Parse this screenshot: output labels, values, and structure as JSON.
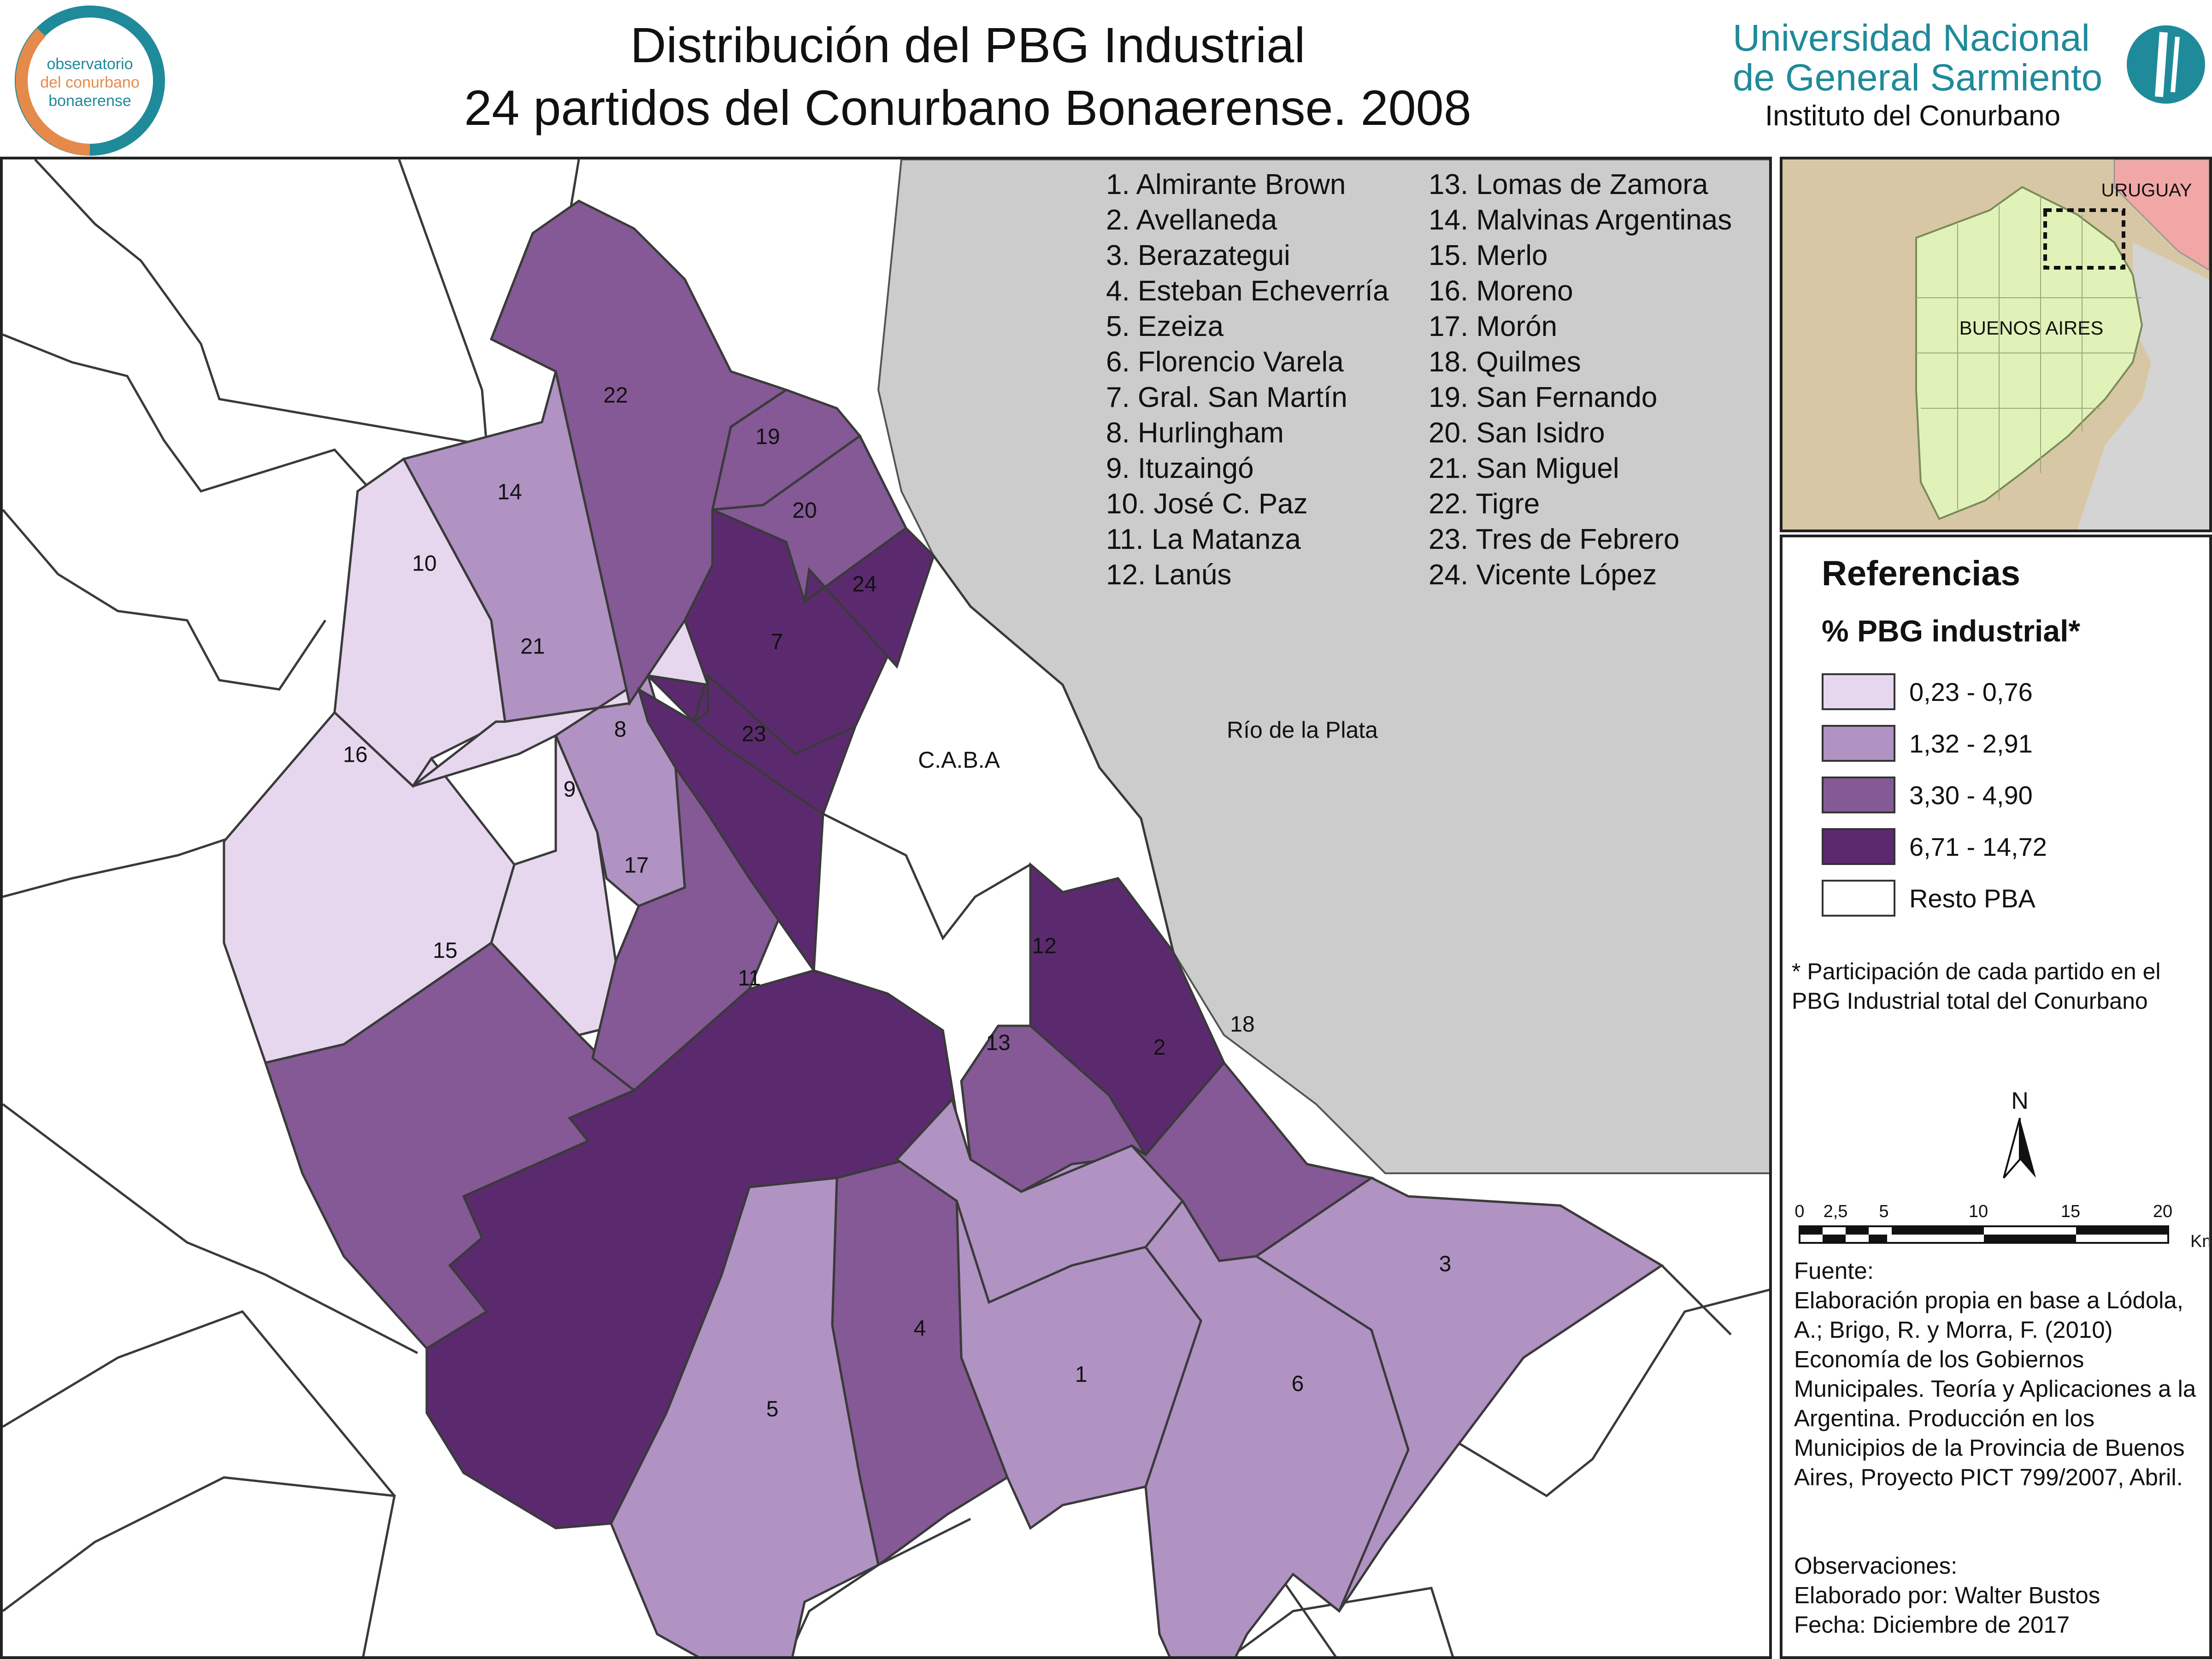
{
  "header": {
    "title_line1": "Distribución del PBG Industrial",
    "title_line2": "24 partidos del Conurbano Bonaerense. 2008",
    "logo_left_lines": [
      "observatorio",
      "del conurbano",
      "bonaerense"
    ],
    "university_line1": "Universidad Nacional",
    "university_line2": "de General Sarmiento",
    "institute": "Instituto del Conurbano"
  },
  "colors": {
    "class1": "#e6d7ef",
    "class2": "#b092c3",
    "class3": "#845995",
    "class4": "#5b2a6e",
    "rest": "#ffffff",
    "water": "#cccccc",
    "border": "#3a3a3a",
    "brand_teal": "#1f8a9a",
    "brand_orange": "#e58a4b"
  },
  "map": {
    "caba_label": "C.A.B.A",
    "river_label": "Río de la Plata",
    "partidos": [
      {
        "num": "1",
        "cls": 2
      },
      {
        "num": "2",
        "cls": 4
      },
      {
        "num": "3",
        "cls": 2
      },
      {
        "num": "4",
        "cls": 3
      },
      {
        "num": "5",
        "cls": 2
      },
      {
        "num": "6",
        "cls": 2
      },
      {
        "num": "7",
        "cls": 4
      },
      {
        "num": "8",
        "cls": 2
      },
      {
        "num": "9",
        "cls": 1
      },
      {
        "num": "10",
        "cls": 1
      },
      {
        "num": "11",
        "cls": 4
      },
      {
        "num": "12",
        "cls": 3
      },
      {
        "num": "13",
        "cls": 2
      },
      {
        "num": "14",
        "cls": 2
      },
      {
        "num": "15",
        "cls": 3
      },
      {
        "num": "16",
        "cls": 1
      },
      {
        "num": "17",
        "cls": 3
      },
      {
        "num": "18",
        "cls": 3
      },
      {
        "num": "19",
        "cls": 3
      },
      {
        "num": "20",
        "cls": 3
      },
      {
        "num": "21",
        "cls": 1
      },
      {
        "num": "22",
        "cls": 3
      },
      {
        "num": "23",
        "cls": 4
      },
      {
        "num": "24",
        "cls": 4
      }
    ]
  },
  "partido_list_col1": [
    "1. Almirante Brown",
    "2. Avellaneda",
    "3. Berazategui",
    "4. Esteban Echeverría",
    "5. Ezeiza",
    "6. Florencio Varela",
    "7. Gral. San Martín",
    "8. Hurlingham",
    "9. Ituzaingó",
    "10. José C. Paz",
    "11. La Matanza",
    "12. Lanús"
  ],
  "partido_list_col2": [
    "13. Lomas de Zamora",
    "14. Malvinas Argentinas",
    "15. Merlo",
    "16. Moreno",
    "17. Morón",
    "18. Quilmes",
    "19. San Fernando",
    "20. San Isidro",
    "21. San Miguel",
    "22. Tigre",
    "23. Tres de Febrero",
    "24. Vicente López"
  ],
  "inset": {
    "label_country": "URUGUAY",
    "label_province": "BUENOS AIRES"
  },
  "legend": {
    "title": "Referencias",
    "subtitle": "% PBG industrial*",
    "items": [
      {
        "label": "0,23 - 0,76",
        "color": "#e6d7ef"
      },
      {
        "label": "1,32 - 2,91",
        "color": "#b092c3"
      },
      {
        "label": "3,30 - 4,90",
        "color": "#845995"
      },
      {
        "label": "6,71 - 14,72",
        "color": "#5b2a6e"
      },
      {
        "label": "Resto PBA",
        "color": "#ffffff"
      }
    ],
    "note": "* Participación de cada partido en el PBG Industrial total del Conurbano",
    "north": "N",
    "scale_ticks": [
      "0",
      "2,5",
      "5",
      "10",
      "15",
      "20"
    ],
    "scale_unit": "Km."
  },
  "source": {
    "heading": "Fuente:",
    "text": " Elaboración propia en base a Lódola, A.; Brigo, R. y Morra, F. (2010) Economía de los Gobiernos Municipales. Teoría y Aplicaciones a la Argentina. Producción en los Municipios de la Provincia de Buenos Aires, Proyecto PICT 799/2007, Abril."
  },
  "observations": {
    "heading": "Observaciones:",
    "author": "Elaborado por: Walter Bustos",
    "date": "Fecha: Diciembre de 2017"
  }
}
